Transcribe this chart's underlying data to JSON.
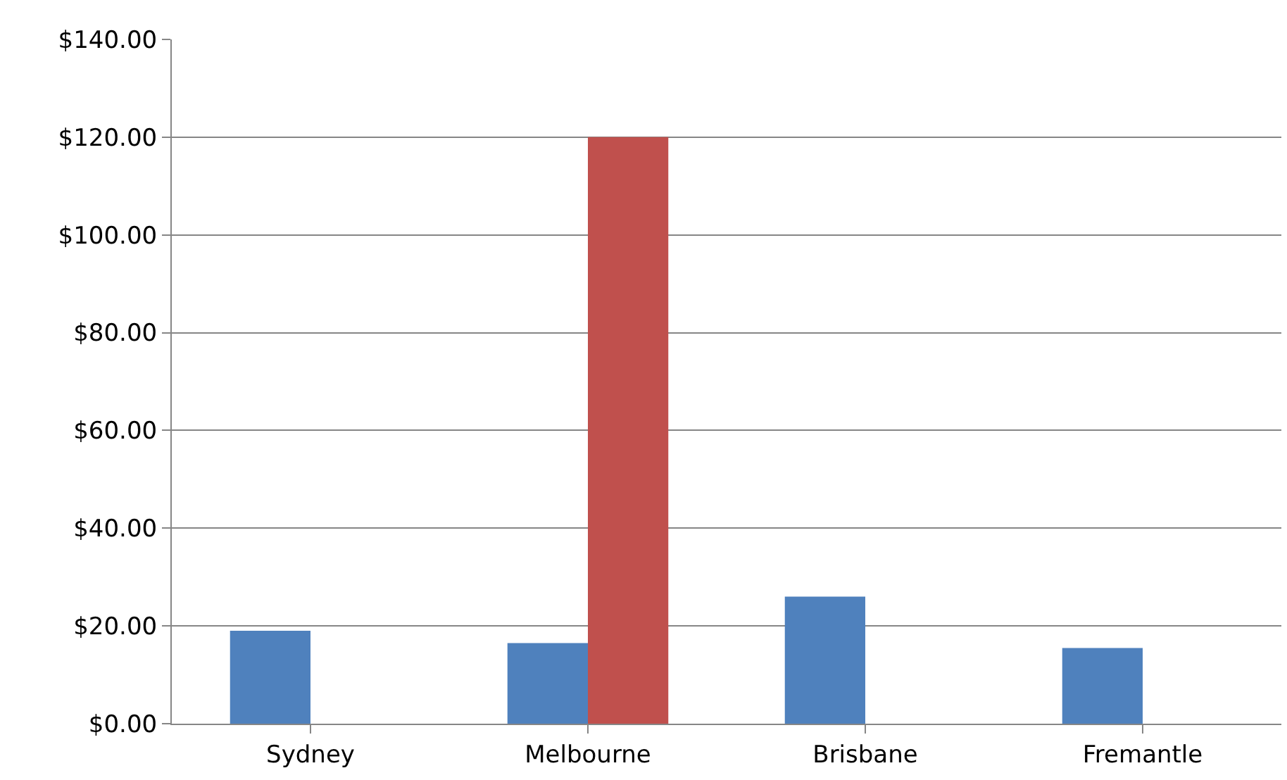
{
  "chart_data": {
    "type": "bar",
    "categories": [
      "Sydney",
      "Melbourne",
      "Brisbane",
      "Fremantle"
    ],
    "series": [
      {
        "color": "#4f81bd",
        "values": [
          19,
          16.5,
          26,
          15.5
        ]
      },
      {
        "color": "#c0504d",
        "values": [
          null,
          120,
          null,
          null
        ]
      }
    ],
    "ylim": [
      0,
      140
    ],
    "yticks": [
      {
        "value": 0,
        "label": "$0.00"
      },
      {
        "value": 20,
        "label": "$20.00"
      },
      {
        "value": 40,
        "label": "$40.00"
      },
      {
        "value": 60,
        "label": "$60.00"
      },
      {
        "value": 80,
        "label": "$80.00"
      },
      {
        "value": 100,
        "label": "$100.00"
      },
      {
        "value": 120,
        "label": "$120.00"
      },
      {
        "value": 140,
        "label": "$140.00"
      }
    ],
    "grid": "y"
  }
}
